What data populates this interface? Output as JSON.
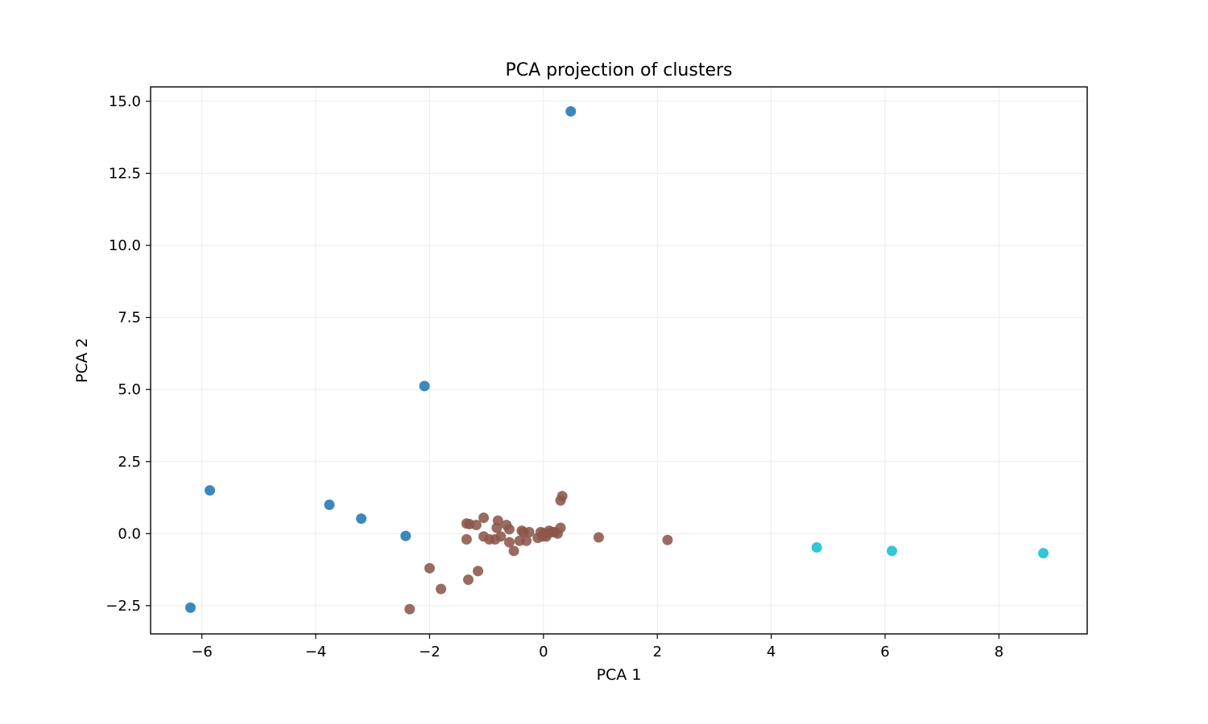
{
  "chart_data": {
    "type": "scatter",
    "title": "PCA projection of clusters",
    "xlabel": "PCA 1",
    "ylabel": "PCA 2",
    "xlim": [
      -6.9,
      9.55
    ],
    "ylim": [
      -3.48,
      15.5
    ],
    "xticks": [
      -6,
      -4,
      -2,
      0,
      2,
      4,
      6,
      8
    ],
    "yticks": [
      -2.5,
      0.0,
      2.5,
      5.0,
      7.5,
      10.0,
      12.5,
      15.0
    ],
    "xtick_labels": [
      "−6",
      "−4",
      "−2",
      "0",
      "2",
      "4",
      "6",
      "8"
    ],
    "ytick_labels": [
      "−2.5",
      "0.0",
      "2.5",
      "5.0",
      "7.5",
      "10.0",
      "12.5",
      "15.0"
    ],
    "grid": true,
    "legend": "none",
    "series": [
      {
        "color": "#1f77b4",
        "points": [
          [
            0.48,
            14.65
          ],
          [
            -2.09,
            5.12
          ],
          [
            -5.86,
            1.5
          ],
          [
            -3.76,
            1.0
          ],
          [
            -3.2,
            0.52
          ],
          [
            -2.42,
            -0.08
          ],
          [
            -6.2,
            -2.57
          ]
        ]
      },
      {
        "color": "#8c564b",
        "points": [
          [
            0.33,
            1.3
          ],
          [
            0.3,
            1.15
          ],
          [
            -1.05,
            0.55
          ],
          [
            -0.8,
            0.45
          ],
          [
            -1.35,
            0.35
          ],
          [
            -1.3,
            0.33
          ],
          [
            -1.18,
            0.3
          ],
          [
            -0.65,
            0.3
          ],
          [
            -0.82,
            0.2
          ],
          [
            -0.6,
            0.15
          ],
          [
            -0.38,
            0.1
          ],
          [
            -0.35,
            0.05
          ],
          [
            -0.25,
            0.05
          ],
          [
            -0.05,
            0.05
          ],
          [
            0.0,
            0.02
          ],
          [
            0.05,
            0.0
          ],
          [
            0.1,
            0.1
          ],
          [
            0.15,
            0.05
          ],
          [
            0.2,
            0.05
          ],
          [
            0.25,
            0.0
          ],
          [
            0.3,
            0.2
          ],
          [
            -0.02,
            -0.1
          ],
          [
            0.05,
            -0.1
          ],
          [
            -0.1,
            -0.15
          ],
          [
            -1.05,
            -0.1
          ],
          [
            -0.75,
            -0.1
          ],
          [
            -1.35,
            -0.2
          ],
          [
            -0.95,
            -0.2
          ],
          [
            -0.85,
            -0.2
          ],
          [
            -0.6,
            -0.3
          ],
          [
            -0.42,
            -0.25
          ],
          [
            -0.3,
            -0.25
          ],
          [
            -0.52,
            -0.6
          ],
          [
            0.97,
            -0.13
          ],
          [
            2.18,
            -0.22
          ],
          [
            -2.0,
            -1.2
          ],
          [
            -1.15,
            -1.3
          ],
          [
            -1.32,
            -1.6
          ],
          [
            -1.8,
            -1.92
          ],
          [
            -2.35,
            -2.62
          ]
        ]
      },
      {
        "color": "#17becf",
        "points": [
          [
            4.8,
            -0.48
          ],
          [
            6.12,
            -0.6
          ],
          [
            8.78,
            -0.68
          ]
        ]
      }
    ]
  }
}
